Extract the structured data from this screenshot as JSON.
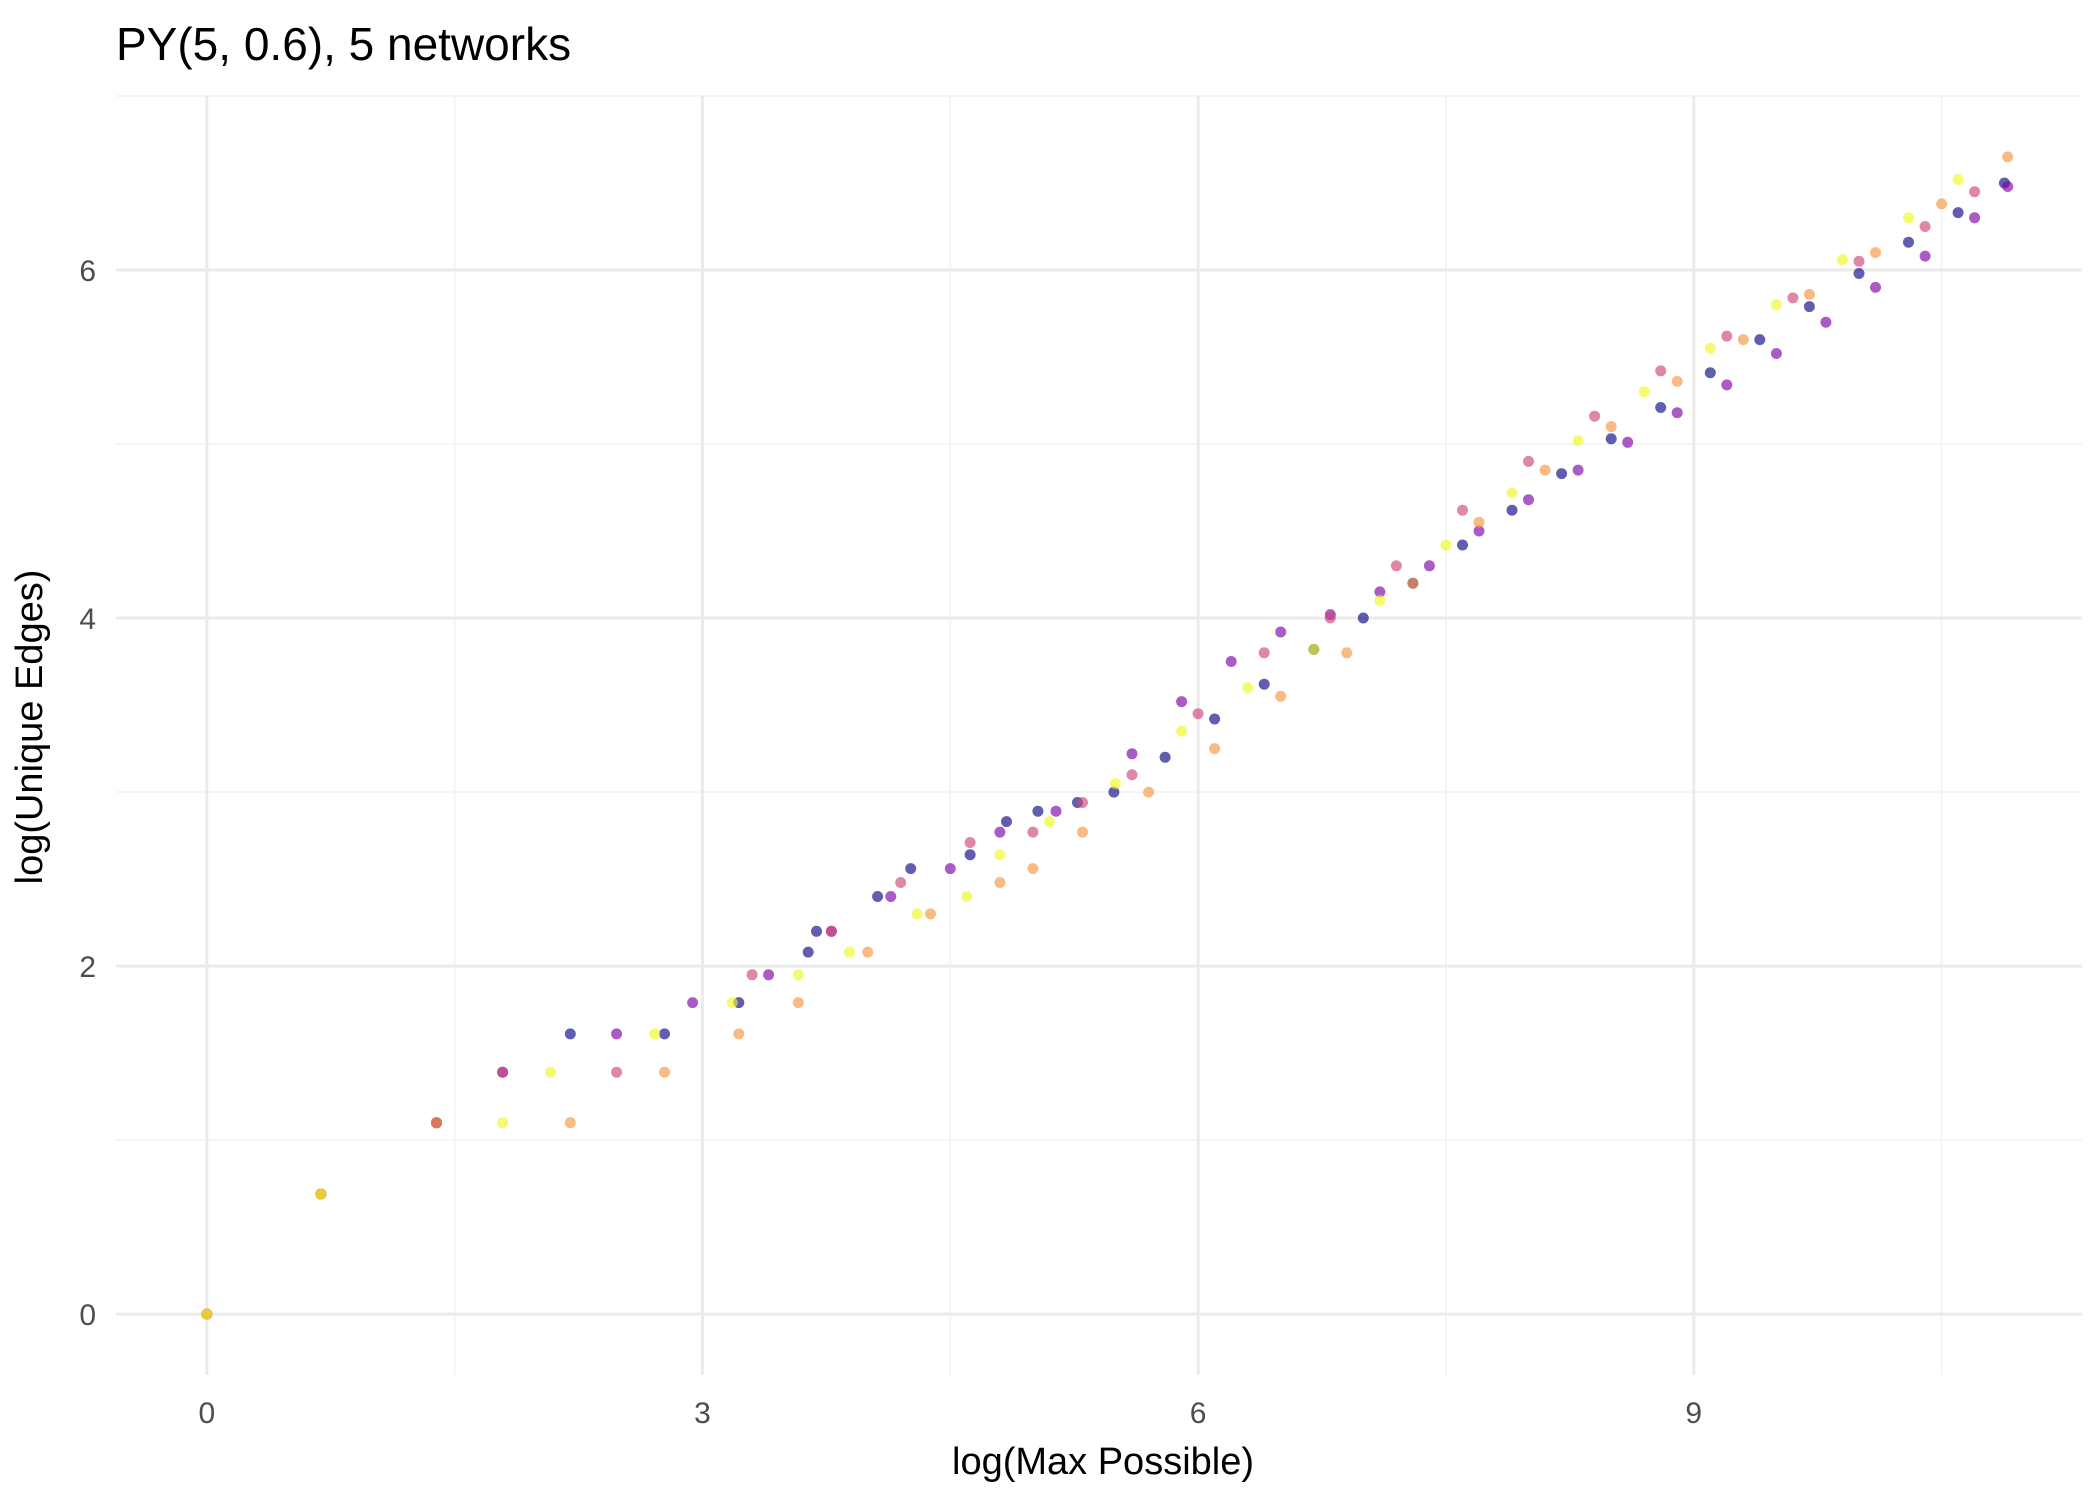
{
  "chart_data": {
    "type": "scatter",
    "title": "PY(5, 0.6), 5 networks",
    "xlabel": "log(Max Possible)",
    "ylabel": "log(Unique Edges)",
    "xlim": [
      -0.55,
      11.35
    ],
    "ylim": [
      -0.35,
      7.0
    ],
    "x_ticks": [
      0,
      3,
      6,
      9
    ],
    "x_tick_labels": [
      "0",
      "3",
      "6",
      "9"
    ],
    "y_ticks": [
      0,
      2,
      4,
      6
    ],
    "y_tick_labels": [
      "0",
      "2",
      "4",
      "6"
    ],
    "grid": true,
    "legend": "none",
    "series": [
      {
        "color": "#0d0887",
        "x": [
          0,
          0.69,
          1.39,
          2.2,
          2.77,
          3.22,
          3.64,
          3.69,
          4.06,
          4.26,
          4.62,
          4.84,
          5.03,
          5.27,
          5.49,
          5.8,
          6.1,
          6.4,
          6.7,
          7.0,
          7.3,
          7.6,
          7.9,
          8.2,
          8.5,
          8.8,
          9.1,
          9.4,
          9.7,
          10.0,
          10.3,
          10.6,
          10.88
        ],
        "y": [
          0,
          0.69,
          1.1,
          1.61,
          1.61,
          1.79,
          2.08,
          2.2,
          2.4,
          2.56,
          2.64,
          2.83,
          2.89,
          2.94,
          3.0,
          3.2,
          3.42,
          3.62,
          3.82,
          4.0,
          4.2,
          4.42,
          4.62,
          4.83,
          5.03,
          5.21,
          5.41,
          5.6,
          5.79,
          5.98,
          6.16,
          6.33,
          6.5
        ]
      },
      {
        "color": "#7e03a8",
        "x": [
          0,
          0.69,
          1.39,
          1.79,
          2.48,
          2.94,
          3.4,
          3.78,
          4.14,
          4.5,
          4.8,
          5.14,
          5.6,
          5.9,
          6.2,
          6.5,
          6.8,
          7.1,
          7.4,
          7.7,
          8.0,
          8.3,
          8.6,
          8.9,
          9.2,
          9.5,
          9.8,
          10.1,
          10.4,
          10.7,
          10.9
        ],
        "y": [
          0,
          0.69,
          1.1,
          1.39,
          1.61,
          1.79,
          1.95,
          2.2,
          2.4,
          2.56,
          2.77,
          2.89,
          3.22,
          3.52,
          3.75,
          3.92,
          4.02,
          4.15,
          4.3,
          4.5,
          4.68,
          4.85,
          5.01,
          5.18,
          5.34,
          5.52,
          5.7,
          5.9,
          6.08,
          6.3,
          6.48
        ]
      },
      {
        "color": "#cc4778",
        "x": [
          0,
          0.69,
          1.39,
          1.79,
          2.48,
          3.3,
          3.78,
          4.2,
          4.62,
          5.0,
          5.3,
          5.6,
          6.0,
          6.4,
          6.8,
          7.2,
          7.6,
          8.0,
          8.4,
          8.8,
          9.2,
          9.6,
          10.0,
          10.4,
          10.7
        ],
        "y": [
          0,
          0.69,
          1.1,
          1.39,
          1.39,
          1.95,
          2.2,
          2.48,
          2.71,
          2.77,
          2.94,
          3.1,
          3.45,
          3.8,
          4.0,
          4.3,
          4.62,
          4.9,
          5.16,
          5.42,
          5.62,
          5.84,
          6.05,
          6.25,
          6.45
        ]
      },
      {
        "color": "#f89540",
        "x": [
          0,
          0.69,
          1.39,
          2.2,
          2.77,
          3.22,
          3.58,
          4.0,
          4.38,
          4.8,
          5.0,
          5.3,
          5.7,
          6.1,
          6.5,
          6.9,
          7.3,
          7.7,
          8.1,
          8.5,
          8.9,
          9.3,
          9.7,
          10.1,
          10.5,
          10.9
        ],
        "y": [
          0,
          0.69,
          1.1,
          1.1,
          1.39,
          1.61,
          1.79,
          2.08,
          2.3,
          2.48,
          2.56,
          2.77,
          3.0,
          3.25,
          3.55,
          3.8,
          4.2,
          4.55,
          4.85,
          5.1,
          5.36,
          5.6,
          5.86,
          6.1,
          6.38,
          6.65
        ]
      },
      {
        "color": "#f0f921",
        "x": [
          0,
          0.69,
          1.79,
          2.08,
          2.71,
          3.18,
          3.58,
          3.89,
          4.3,
          4.6,
          4.8,
          5.1,
          5.5,
          5.9,
          6.3,
          6.7,
          7.1,
          7.5,
          7.9,
          8.3,
          8.7,
          9.1,
          9.5,
          9.9,
          10.3,
          10.6
        ],
        "y": [
          0,
          0.69,
          1.1,
          1.39,
          1.61,
          1.79,
          1.95,
          2.08,
          2.3,
          2.4,
          2.64,
          2.83,
          3.05,
          3.35,
          3.6,
          3.82,
          4.1,
          4.42,
          4.72,
          5.02,
          5.3,
          5.55,
          5.8,
          6.06,
          6.3,
          6.52
        ]
      }
    ]
  }
}
